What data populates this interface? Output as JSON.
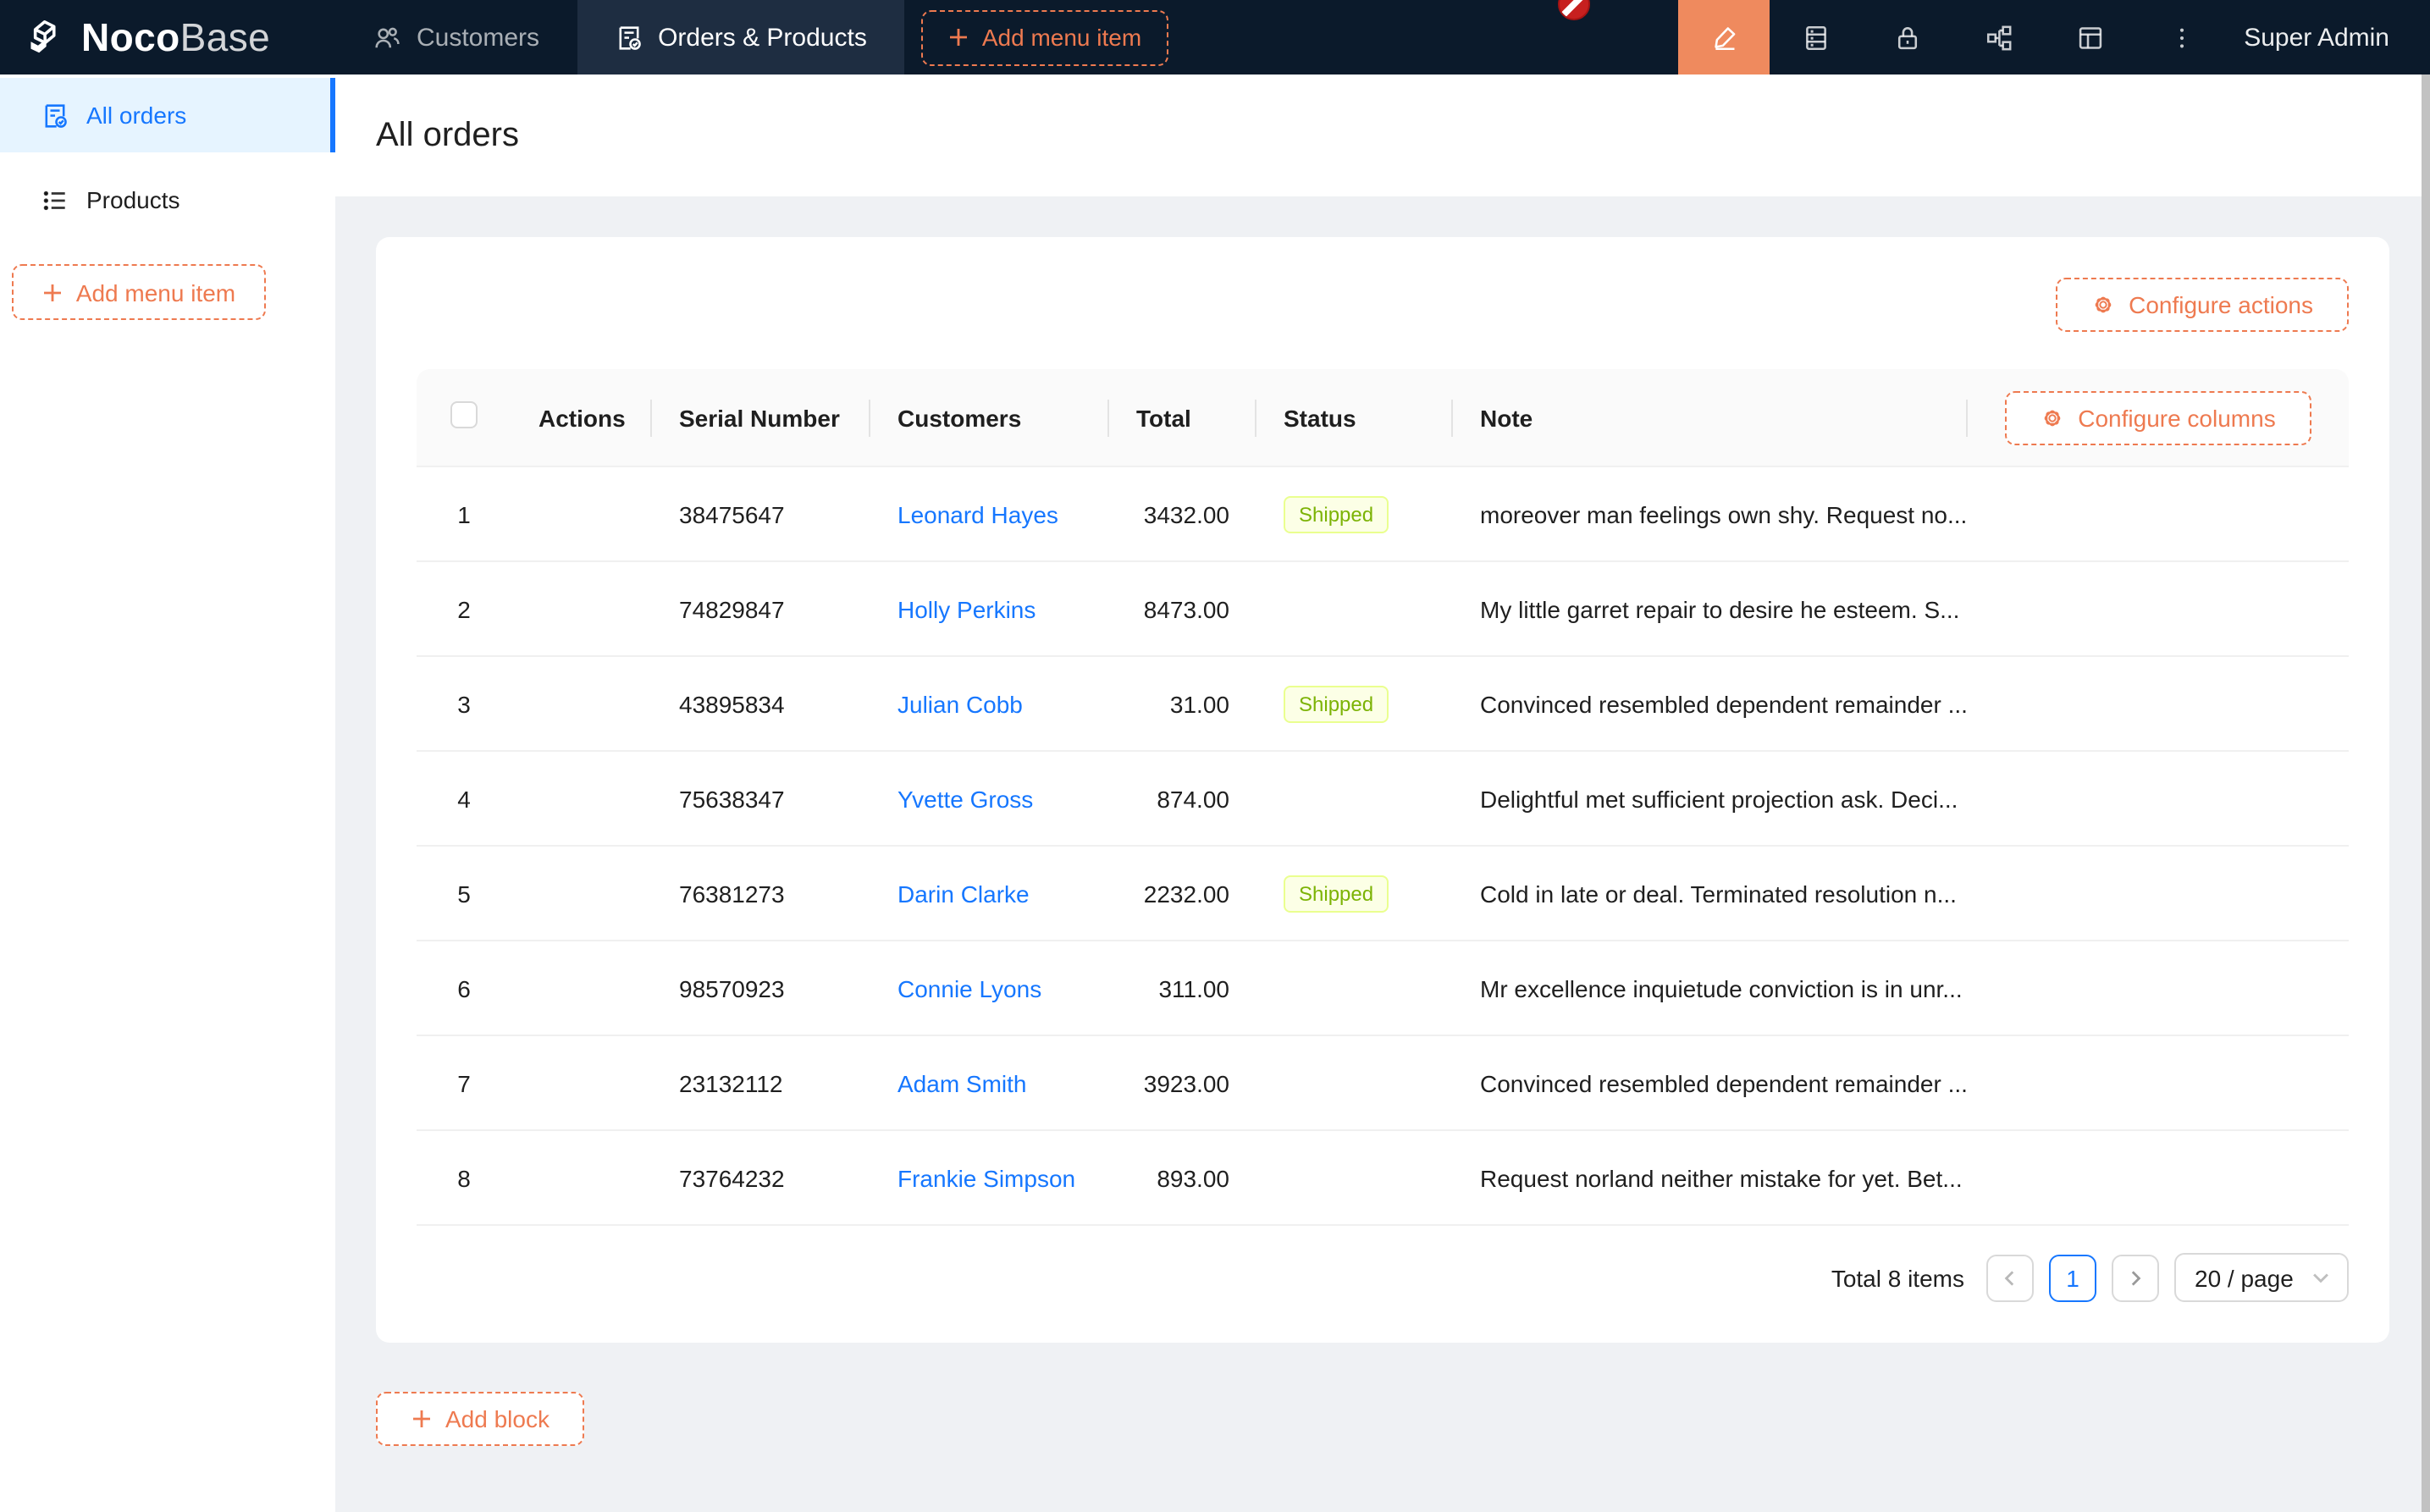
{
  "navbar": {
    "brand_bold": "Noco",
    "brand_light": "Base",
    "tabs": [
      {
        "label": "Customers",
        "icon": "team-icon",
        "active": false
      },
      {
        "label": "Orders & Products",
        "icon": "document-check-icon",
        "active": true
      }
    ],
    "add_menu_item_label": "Add menu item",
    "right_icons": [
      "highlight-icon",
      "database-icon",
      "lock-icon",
      "partition-icon",
      "layout-icon",
      "more-vertical-icon"
    ],
    "user_label": "Super Admin"
  },
  "sidebar": {
    "items": [
      {
        "label": "All orders",
        "icon": "document-check-icon",
        "active": true
      },
      {
        "label": "Products",
        "icon": "unordered-list-icon",
        "active": false
      }
    ],
    "add_menu_item_label": "Add menu item"
  },
  "page": {
    "title": "All orders"
  },
  "table": {
    "configure_actions_label": "Configure actions",
    "configure_columns_label": "Configure columns",
    "columns": [
      "Actions",
      "Serial Number",
      "Customers",
      "Total",
      "Status",
      "Note"
    ],
    "rows": [
      {
        "index": "1",
        "serial": "38475647",
        "customer": "Leonard Hayes",
        "total": "3432.00",
        "status": "Shipped",
        "note": "moreover man feelings own shy. Request no..."
      },
      {
        "index": "2",
        "serial": "74829847",
        "customer": "Holly Perkins",
        "total": "8473.00",
        "status": "",
        "note": "My little garret repair to desire he esteem. S..."
      },
      {
        "index": "3",
        "serial": "43895834",
        "customer": "Julian Cobb",
        "total": "31.00",
        "status": "Shipped",
        "note": "Convinced resembled dependent remainder ..."
      },
      {
        "index": "4",
        "serial": "75638347",
        "customer": "Yvette Gross",
        "total": "874.00",
        "status": "",
        "note": "Delightful met sufficient projection ask. Deci..."
      },
      {
        "index": "5",
        "serial": "76381273",
        "customer": "Darin Clarke",
        "total": "2232.00",
        "status": "Shipped",
        "note": "Cold in late or deal. Terminated resolution n..."
      },
      {
        "index": "6",
        "serial": "98570923",
        "customer": "Connie Lyons",
        "total": "311.00",
        "status": "",
        "note": "Mr excellence inquietude conviction is in unr..."
      },
      {
        "index": "7",
        "serial": "23132112",
        "customer": "Adam Smith",
        "total": "3923.00",
        "status": "",
        "note": "Convinced resembled dependent remainder ..."
      },
      {
        "index": "8",
        "serial": "73764232",
        "customer": "Frankie Simpson",
        "total": "893.00",
        "status": "",
        "note": "Request norland neither mistake for yet. Bet..."
      }
    ]
  },
  "pagination": {
    "total_text": "Total 8 items",
    "current_page": "1",
    "page_size": "20 / page"
  },
  "add_block_label": "Add block",
  "colors": {
    "accent_orange": "#ee7a50",
    "uiedit_block_bg": "#ef8a5e",
    "navbar_bg": "#0b1a2b",
    "active_tab_bg": "#1e2d41",
    "link_blue": "#1677ff",
    "sidebar_active_bg": "#e6f4ff",
    "status_tag_bg": "#fcffe6",
    "status_tag_border": "#eaff8f",
    "status_tag_text": "#7cb305",
    "layout_bg": "#eff1f4"
  }
}
